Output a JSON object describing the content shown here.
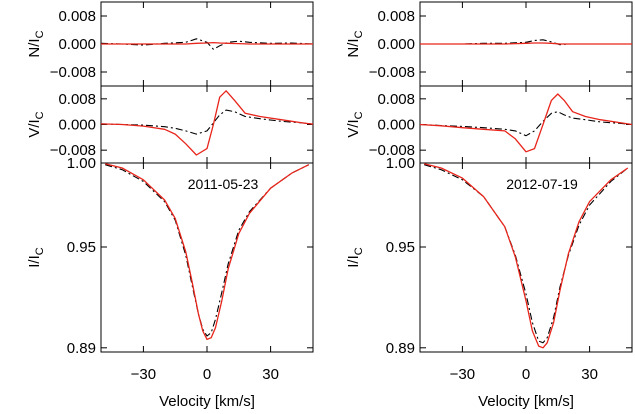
{
  "figure": {
    "xlabel": "Velocity [km/s]",
    "colors": {
      "observed": "#000000",
      "model": "#e8251b"
    },
    "styles": {
      "observed": "dash-dot",
      "model": "solid"
    }
  },
  "chart_data": [
    {
      "type": "line",
      "column": "left",
      "row": "N",
      "ylabel": "N/I",
      "ylabel_sub": "C",
      "xlim": [
        -50,
        50
      ],
      "ylim": [
        -0.012,
        0.012
      ],
      "yticks": [
        0.008,
        0.0,
        -0.008
      ],
      "ytick_labels": [
        "0.008",
        "0.000",
        "−0.008"
      ],
      "x": [
        -50,
        -40,
        -30,
        -20,
        -10,
        -5,
        0,
        3,
        6,
        10,
        15,
        20,
        30,
        40,
        50
      ],
      "series": [
        {
          "style": "observed",
          "values": [
            0.0002,
            0.0,
            -0.0003,
            0.0002,
            0.0005,
            0.0015,
            0.0005,
            -0.0015,
            -0.0005,
            0.0005,
            0.0008,
            0.0005,
            0.0002,
            0.0003,
            0.0
          ]
        },
        {
          "style": "model",
          "values": [
            0.0,
            0.0,
            0.0,
            0.0,
            0.0,
            0.0002,
            0.0003,
            0.0004,
            0.0003,
            0.0002,
            0.0001,
            0.0,
            0.0,
            0.0,
            0.0
          ]
        }
      ]
    },
    {
      "type": "line",
      "column": "left",
      "row": "V",
      "ylabel": "V/I",
      "ylabel_sub": "C",
      "xlim": [
        -50,
        50
      ],
      "ylim": [
        -0.012,
        0.012
      ],
      "yticks": [
        0.008,
        0.0,
        -0.008
      ],
      "ytick_labels": [
        "0.008",
        "0.000",
        "−0.008"
      ],
      "x": [
        -50,
        -40,
        -30,
        -20,
        -15,
        -10,
        -5,
        0,
        3,
        6,
        9,
        13,
        18,
        25,
        35,
        45,
        50
      ],
      "series": [
        {
          "style": "observed",
          "values": [
            0.0002,
            0.0,
            -0.0002,
            -0.0007,
            -0.0012,
            -0.002,
            -0.003,
            -0.002,
            0.0005,
            0.003,
            0.0045,
            0.004,
            0.0025,
            0.0018,
            0.001,
            0.0005,
            0.0002
          ]
        },
        {
          "style": "model",
          "values": [
            0.0002,
            0.0,
            -0.0005,
            -0.0015,
            -0.003,
            -0.006,
            -0.0095,
            -0.0075,
            0.0,
            0.0085,
            0.0105,
            0.0075,
            0.0035,
            0.0025,
            0.0015,
            0.0005,
            0.0001
          ]
        }
      ]
    },
    {
      "type": "line",
      "column": "left",
      "row": "I",
      "ylabel": "I/I",
      "ylabel_sub": "C",
      "annotation": "2011-05-23",
      "xlim": [
        -50,
        50
      ],
      "ylim": [
        0.8875,
        1.0
      ],
      "yticks": [
        1.0,
        0.95,
        0.89
      ],
      "ytick_labels": [
        "1.00",
        "0.95",
        "0.89"
      ],
      "xticks": [
        -30,
        0,
        30
      ],
      "xtick_labels": [
        "−30",
        "0",
        "30"
      ],
      "x": [
        -48,
        -40,
        -30,
        -20,
        -15,
        -10,
        -7,
        -4,
        -2,
        0,
        2,
        4,
        7,
        10,
        15,
        20,
        30,
        40,
        48
      ],
      "series": [
        {
          "style": "observed",
          "values": [
            0.999,
            0.996,
            0.989,
            0.977,
            0.966,
            0.945,
            0.927,
            0.91,
            0.901,
            0.897,
            0.899,
            0.907,
            0.923,
            0.94,
            0.96,
            0.971,
            0.985,
            0.994,
            0.999
          ]
        },
        {
          "style": "model",
          "values": [
            0.9995,
            0.997,
            0.99,
            0.978,
            0.967,
            0.947,
            0.929,
            0.91,
            0.9,
            0.895,
            0.896,
            0.902,
            0.918,
            0.937,
            0.958,
            0.97,
            0.985,
            0.994,
            0.999
          ]
        }
      ]
    },
    {
      "type": "line",
      "column": "right",
      "row": "N",
      "ylabel": "N/I",
      "ylabel_sub": "C",
      "xlim": [
        -50,
        50
      ],
      "ylim": [
        -0.012,
        0.012
      ],
      "yticks": [
        0.008,
        0.0,
        -0.008
      ],
      "ytick_labels": [
        "0.008",
        "0.000",
        "−0.008"
      ],
      "x": [
        -50,
        -40,
        -30,
        -20,
        -10,
        0,
        4,
        8,
        12,
        16,
        20,
        30,
        40,
        50
      ],
      "series": [
        {
          "style": "observed",
          "values": [
            0.0,
            0.0,
            0.0,
            0.0002,
            0.0002,
            0.0005,
            0.001,
            0.0012,
            0.0006,
            -0.0002,
            0.0,
            0.0,
            0.0,
            0.0
          ]
        },
        {
          "style": "model",
          "values": [
            0.0,
            0.0,
            0.0,
            0.0,
            0.0,
            0.0002,
            0.0003,
            0.0003,
            0.0002,
            0.0,
            0.0,
            0.0,
            0.0,
            0.0
          ]
        }
      ]
    },
    {
      "type": "line",
      "column": "right",
      "row": "V",
      "ylabel": "V/I",
      "ylabel_sub": "C",
      "xlim": [
        -50,
        50
      ],
      "ylim": [
        -0.012,
        0.012
      ],
      "yticks": [
        0.008,
        0.0,
        -0.008
      ],
      "ytick_labels": [
        "0.008",
        "0.000",
        "−0.008"
      ],
      "x": [
        -50,
        -40,
        -30,
        -20,
        -10,
        -5,
        0,
        4,
        8,
        12,
        15,
        18,
        22,
        28,
        35,
        45,
        50
      ],
      "series": [
        {
          "style": "observed",
          "values": [
            0.0,
            -0.0003,
            -0.0006,
            -0.001,
            -0.0015,
            -0.002,
            -0.0035,
            -0.002,
            0.001,
            0.0035,
            0.004,
            0.003,
            0.002,
            0.0015,
            0.0008,
            0.0003,
            0.0
          ]
        },
        {
          "style": "model",
          "values": [
            0.0,
            -0.0004,
            -0.001,
            -0.0015,
            -0.002,
            -0.0045,
            -0.0085,
            -0.0075,
            0.0,
            0.0075,
            0.0095,
            0.0075,
            0.004,
            0.0025,
            0.0015,
            0.0005,
            0.0
          ]
        }
      ]
    },
    {
      "type": "line",
      "column": "right",
      "row": "I",
      "ylabel": "I/I",
      "ylabel_sub": "C",
      "annotation": "2012-07-19",
      "xlim": [
        -50,
        50
      ],
      "ylim": [
        0.8875,
        1.0
      ],
      "yticks": [
        1.0,
        0.95,
        0.89
      ],
      "ytick_labels": [
        "1.00",
        "0.95",
        "0.89"
      ],
      "xticks": [
        -30,
        0,
        30
      ],
      "xtick_labels": [
        "−30",
        "0",
        "30"
      ],
      "x": [
        -48,
        -40,
        -30,
        -20,
        -10,
        -5,
        0,
        3,
        6,
        8,
        10,
        13,
        16,
        20,
        25,
        30,
        40,
        48
      ],
      "series": [
        {
          "style": "observed",
          "values": [
            0.999,
            0.996,
            0.99,
            0.98,
            0.962,
            0.945,
            0.922,
            0.905,
            0.894,
            0.893,
            0.896,
            0.908,
            0.926,
            0.945,
            0.963,
            0.975,
            0.989,
            0.997
          ]
        },
        {
          "style": "model",
          "values": [
            0.9995,
            0.997,
            0.991,
            0.98,
            0.962,
            0.944,
            0.918,
            0.9,
            0.891,
            0.89,
            0.893,
            0.905,
            0.924,
            0.946,
            0.965,
            0.977,
            0.99,
            0.997
          ]
        }
      ]
    }
  ]
}
